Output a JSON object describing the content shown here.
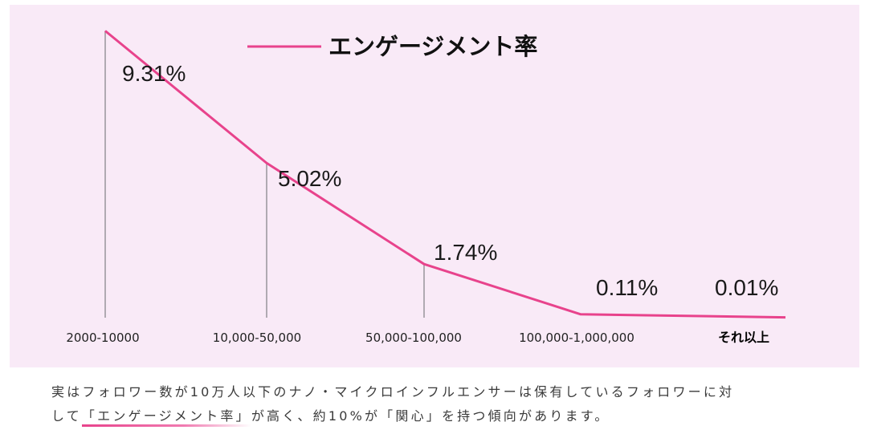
{
  "chart_data": {
    "type": "line",
    "title": "エンゲージメント率",
    "legend": [
      {
        "name": "エンゲージメント率",
        "color": "#e8438c"
      }
    ],
    "categories": [
      "2000-10000",
      "10,000-50,000",
      "50,000-100,000",
      "100,000-1,000,000",
      "それ以上"
    ],
    "values": [
      9.31,
      5.02,
      1.74,
      0.11,
      0.01
    ],
    "value_labels": [
      "9.31%",
      "5.02%",
      "1.74%",
      "0.11%",
      "0.01%"
    ],
    "ylim": [
      0,
      10
    ],
    "xlabel": "",
    "ylabel": "",
    "grid": false
  },
  "colors": {
    "line": "#e8438c",
    "background": "#f9eaf7",
    "drop_line": "#9e9aa0"
  },
  "caption": {
    "line1": "実はフォロワー数が10万人以下のナノ・マイクロインフルエンサーは保有しているフォロワーに対",
    "line2_prefix": "して",
    "line2_highlight": "「エンゲージメント率」",
    "line2_suffix": "が高く、約10%が「関心」を持つ傾向があります。"
  }
}
